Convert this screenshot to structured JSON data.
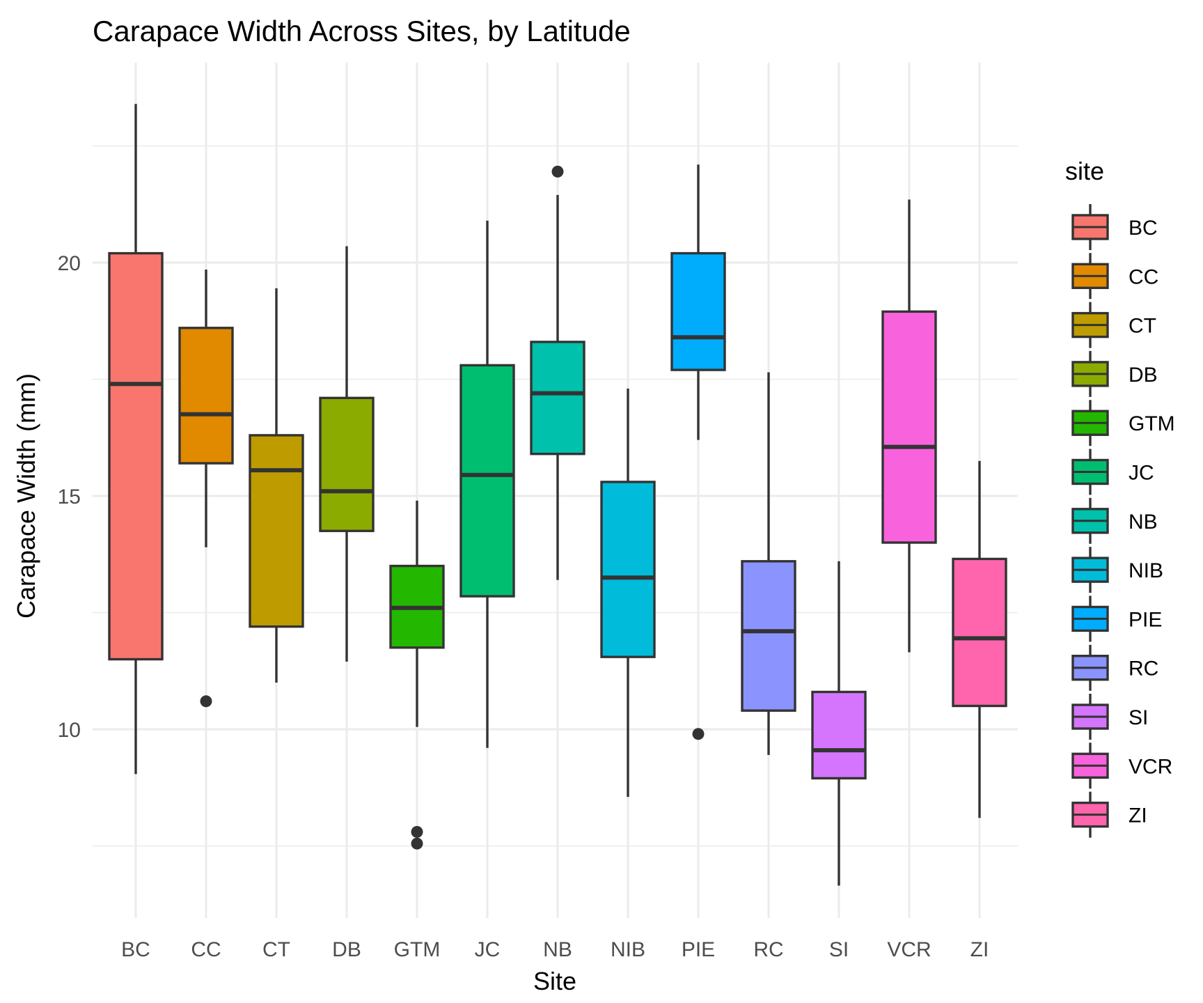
{
  "chart_data": {
    "type": "boxplot",
    "title": "Carapace Width Across Sites, by Latitude",
    "xlabel": "Site",
    "ylabel": "Carapace Width (mm)",
    "ylim": [
      6,
      24.2
    ],
    "yticks": [
      10,
      15,
      20
    ],
    "grid": true,
    "legend": {
      "title": "site",
      "position": "right"
    },
    "categories": [
      "BC",
      "CC",
      "CT",
      "DB",
      "GTM",
      "JC",
      "NB",
      "NIB",
      "PIE",
      "RC",
      "SI",
      "VCR",
      "ZI"
    ],
    "colors": [
      "#F8766D",
      "#E18A00",
      "#BE9C00",
      "#8CAB00",
      "#24B700",
      "#00BE70",
      "#00C1AB",
      "#00BBDA",
      "#00ACFC",
      "#8B93FF",
      "#D575FE",
      "#F962DD",
      "#FF65AC"
    ],
    "series": [
      {
        "category": "BC",
        "min": 9.04,
        "q1": 11.5,
        "median": 17.4,
        "q3": 20.2,
        "max": 23.4,
        "outliers": []
      },
      {
        "category": "CC",
        "min": 13.9,
        "q1": 15.7,
        "median": 16.75,
        "q3": 18.6,
        "max": 19.85,
        "outliers": [
          10.6
        ]
      },
      {
        "category": "CT",
        "min": 11.0,
        "q1": 12.2,
        "median": 15.55,
        "q3": 16.3,
        "max": 19.45,
        "outliers": []
      },
      {
        "category": "DB",
        "min": 11.45,
        "q1": 14.25,
        "median": 15.1,
        "q3": 17.1,
        "max": 20.35,
        "outliers": []
      },
      {
        "category": "GTM",
        "min": 10.05,
        "q1": 11.75,
        "median": 12.6,
        "q3": 13.5,
        "max": 14.9,
        "outliers": [
          7.8,
          7.55
        ]
      },
      {
        "category": "JC",
        "min": 9.6,
        "q1": 12.85,
        "median": 15.45,
        "q3": 17.8,
        "max": 20.9,
        "outliers": []
      },
      {
        "category": "NB",
        "min": 13.2,
        "q1": 15.9,
        "median": 17.2,
        "q3": 18.3,
        "max": 21.45,
        "outliers": [
          21.95
        ]
      },
      {
        "category": "NIB",
        "min": 8.55,
        "q1": 11.55,
        "median": 13.25,
        "q3": 15.3,
        "max": 17.3,
        "outliers": []
      },
      {
        "category": "PIE",
        "min": 16.2,
        "q1": 17.7,
        "median": 18.4,
        "q3": 20.2,
        "max": 22.1,
        "outliers": [
          9.9
        ]
      },
      {
        "category": "RC",
        "min": 9.45,
        "q1": 10.4,
        "median": 12.1,
        "q3": 13.6,
        "max": 17.65,
        "outliers": []
      },
      {
        "category": "SI",
        "min": 6.65,
        "q1": 8.95,
        "median": 9.55,
        "q3": 10.8,
        "max": 13.6,
        "outliers": []
      },
      {
        "category": "VCR",
        "min": 11.65,
        "q1": 14.0,
        "median": 16.05,
        "q3": 18.95,
        "max": 21.35,
        "outliers": []
      },
      {
        "category": "ZI",
        "min": 8.1,
        "q1": 10.5,
        "median": 11.95,
        "q3": 13.65,
        "max": 15.75,
        "outliers": []
      }
    ]
  }
}
